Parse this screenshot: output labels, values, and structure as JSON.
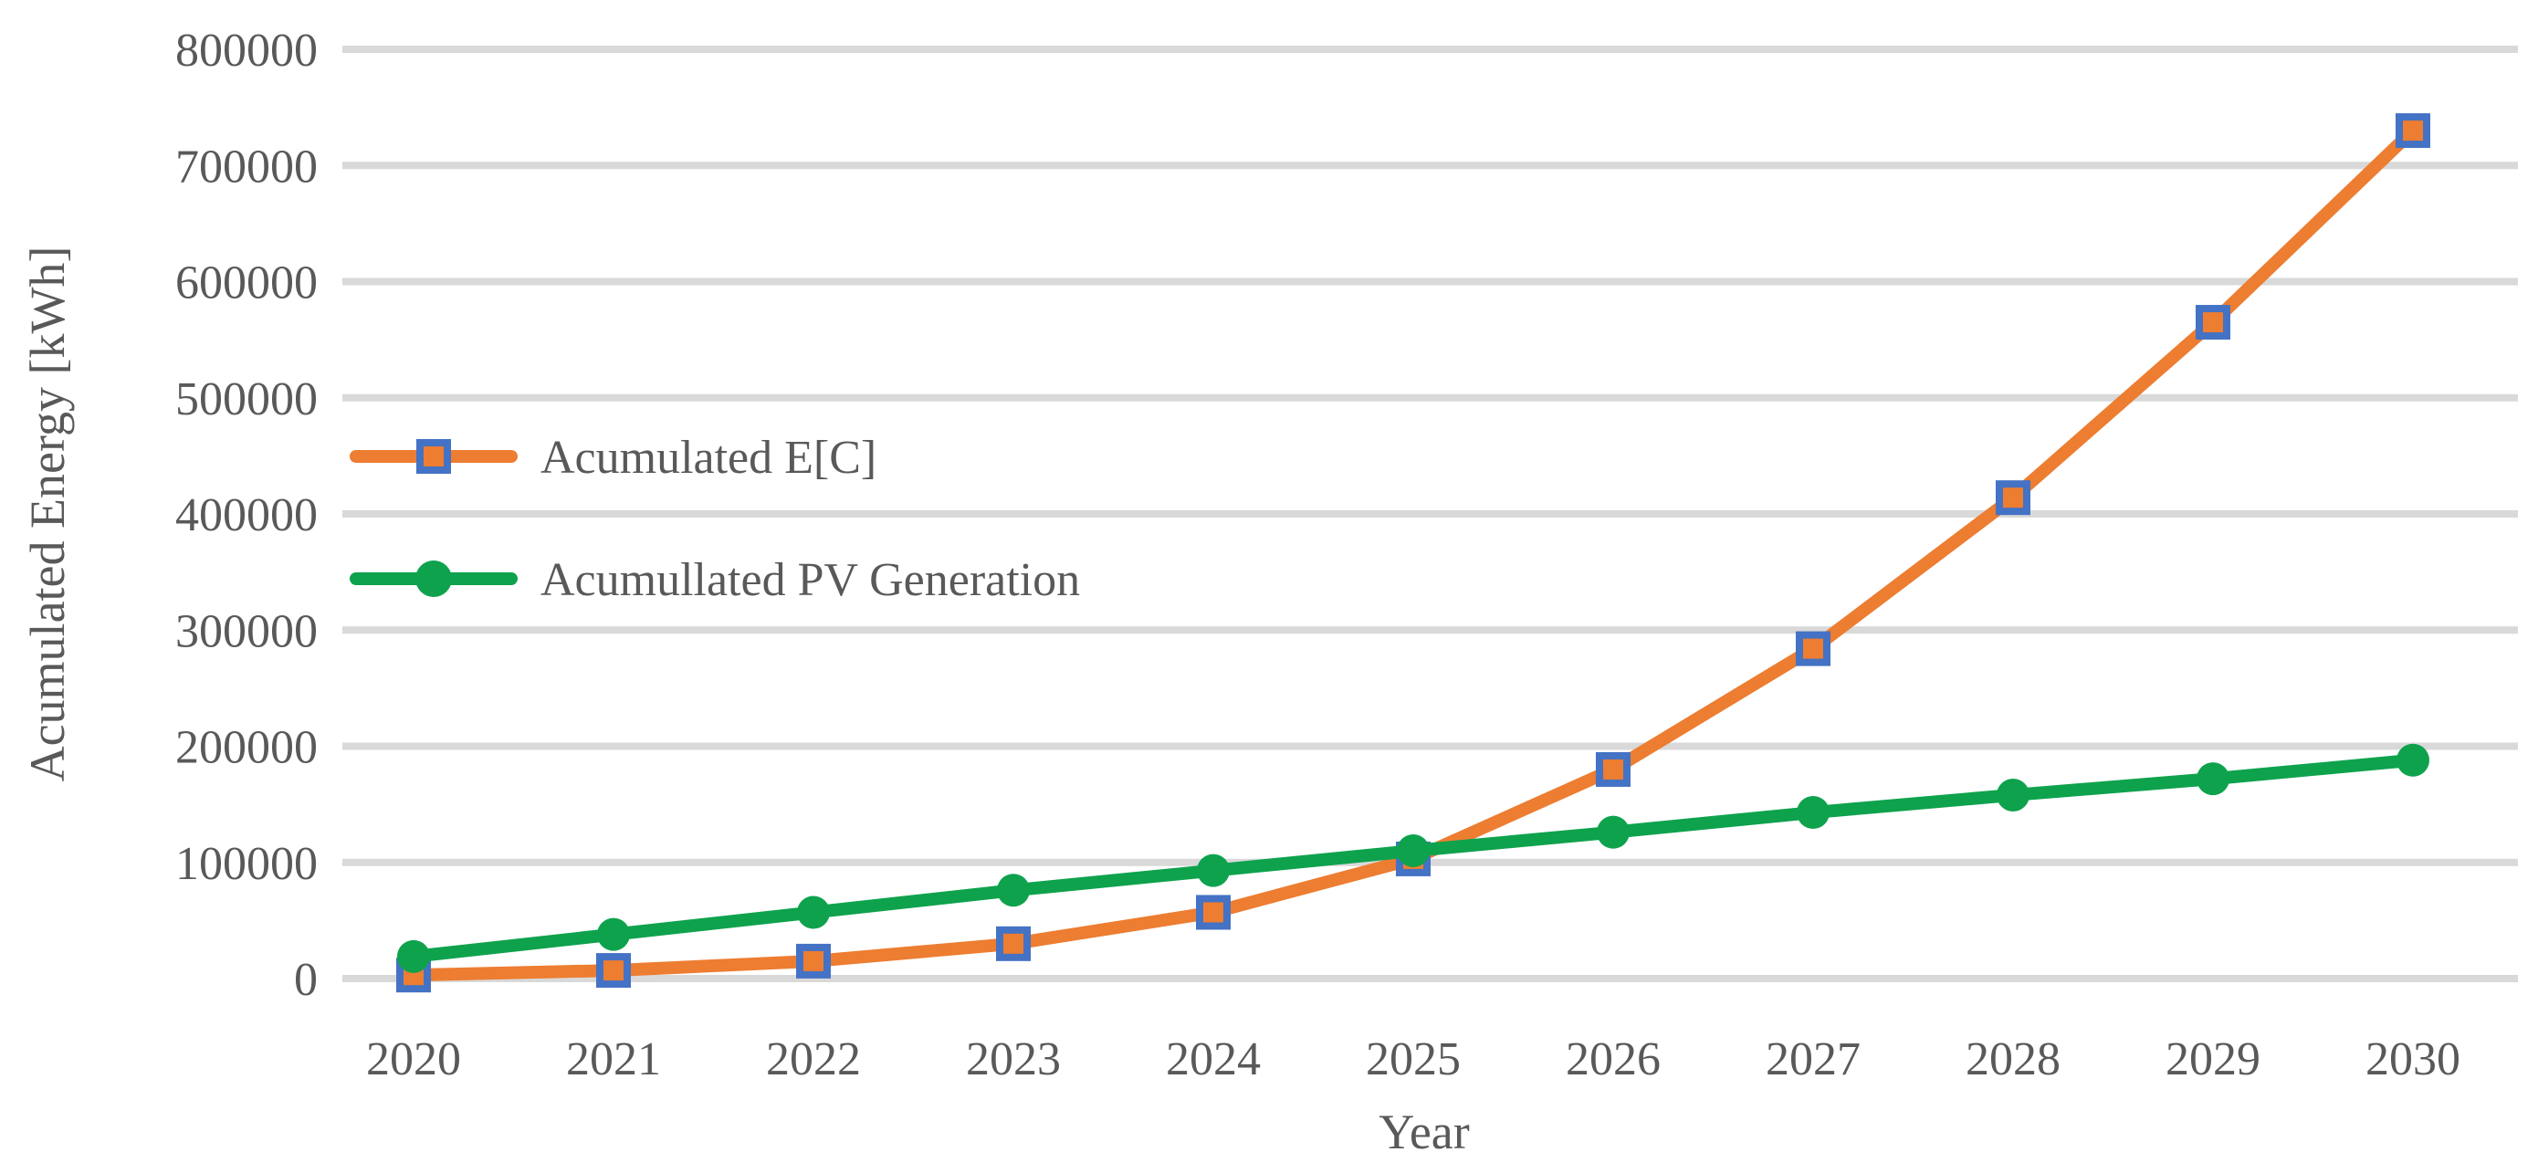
{
  "chart_data": {
    "type": "line",
    "title": "",
    "xlabel": "Year",
    "ylabel": "Acumulated Energy [kWh]",
    "categories": [
      "2020",
      "2021",
      "2022",
      "2023",
      "2024",
      "2025",
      "2026",
      "2027",
      "2028",
      "2029",
      "2030"
    ],
    "series": [
      {
        "name": "Acumulated E[C]",
        "color": "#ED7D31",
        "marker": "square",
        "marker_fill": "#ED7D31",
        "marker_border": "#4472C4",
        "values": [
          3000,
          7000,
          15000,
          30000,
          57000,
          103000,
          180000,
          284000,
          414000,
          565000,
          730000
        ]
      },
      {
        "name": "Acumullated PV Generation",
        "color": "#0EA24D",
        "marker": "circle",
        "marker_fill": "#0EA24D",
        "marker_border": "#0EA24D",
        "values": [
          19000,
          38000,
          57000,
          76000,
          93000,
          110000,
          126000,
          143000,
          158000,
          172000,
          188000
        ]
      }
    ],
    "ylim": [
      0,
      800000
    ],
    "ytick_step": 100000,
    "ytick_labels": [
      "0",
      "100000",
      "200000",
      "300000",
      "400000",
      "500000",
      "600000",
      "700000",
      "800000"
    ],
    "grid": "horizontal",
    "legend_position": "inside-left",
    "colors": {
      "gridline": "#D9D9D9",
      "text": "#595959",
      "background": "#FFFFFF"
    }
  }
}
